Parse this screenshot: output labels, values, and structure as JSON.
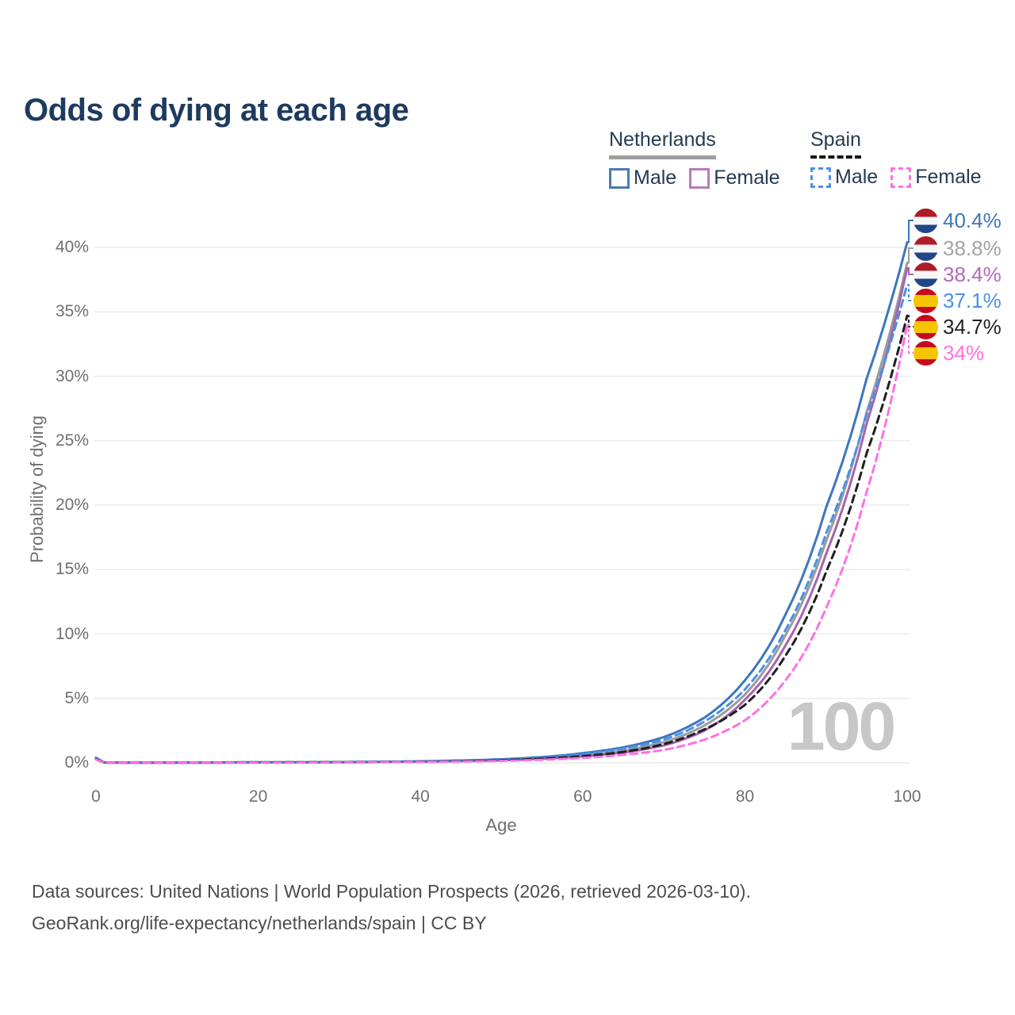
{
  "title": "Odds of dying at each age",
  "watermark": "100",
  "legend": {
    "groups": [
      {
        "country": "Netherlands",
        "line_style": "solid",
        "underline_color": "#9e9e9e",
        "items": [
          {
            "label": "Male",
            "color": "#4a7ab5",
            "dashed": false
          },
          {
            "label": "Female",
            "color": "#b87cba",
            "dashed": false
          }
        ]
      },
      {
        "country": "Spain",
        "line_style": "dashed",
        "underline_color": "#161616",
        "items": [
          {
            "label": "Male",
            "color": "#4a90e8",
            "dashed": true
          },
          {
            "label": "Female",
            "color": "#ff70e4",
            "dashed": true
          }
        ]
      }
    ]
  },
  "axes": {
    "x_title": "Age",
    "y_title": "Probability of dying"
  },
  "chart_data": {
    "type": "line",
    "title": "Odds of dying at each age",
    "xlabel": "Age",
    "ylabel": "Probability of dying",
    "xlim": [
      0,
      100
    ],
    "ylim": [
      0,
      42
    ],
    "grid": "horizontal",
    "legend_position": "top-right",
    "xtick_values": [
      0,
      20,
      40,
      60,
      80,
      100
    ],
    "xtick_labels": [
      "0",
      "20",
      "40",
      "60",
      "80",
      "100"
    ],
    "ytick_values": [
      0,
      5,
      10,
      15,
      20,
      25,
      30,
      35,
      40
    ],
    "ytick_labels": [
      "0%",
      "5%",
      "10%",
      "15%",
      "20%",
      "25%",
      "30%",
      "35%",
      "40%"
    ],
    "x": [
      0,
      1,
      5,
      10,
      15,
      20,
      25,
      30,
      35,
      40,
      45,
      50,
      55,
      60,
      65,
      70,
      75,
      80,
      85,
      90,
      95,
      100
    ],
    "series": [
      {
        "name": "Netherlands (both sexes)",
        "country": "Netherlands",
        "sex": "Both",
        "line": "solid",
        "color": "#9b9b9b",
        "label_color": "#a3a3a3",
        "flag": "nl",
        "end_label": "38.8%",
        "values": [
          0.36,
          0.03,
          0.01,
          0.01,
          0.02,
          0.04,
          0.04,
          0.05,
          0.07,
          0.1,
          0.15,
          0.23,
          0.37,
          0.6,
          0.95,
          1.6,
          2.9,
          5.3,
          9.9,
          17.2,
          27.2,
          38.8
        ]
      },
      {
        "name": "Netherlands Female",
        "country": "Netherlands",
        "sex": "Female",
        "line": "solid",
        "color": "#a763ae",
        "label_color": "#b668bd",
        "flag": "nl",
        "end_label": "38.4%",
        "values": [
          0.33,
          0.02,
          0.01,
          0.01,
          0.02,
          0.03,
          0.03,
          0.04,
          0.06,
          0.08,
          0.13,
          0.19,
          0.31,
          0.5,
          0.8,
          1.35,
          2.5,
          4.9,
          9.1,
          16.2,
          26.3,
          38.4
        ]
      },
      {
        "name": "Netherlands Male",
        "country": "Netherlands",
        "sex": "Male",
        "line": "solid",
        "color": "#3d76bd",
        "label_color": "#4076bb",
        "flag": "nl",
        "end_label": "40.4%",
        "values": [
          0.4,
          0.03,
          0.01,
          0.01,
          0.03,
          0.05,
          0.05,
          0.06,
          0.08,
          0.12,
          0.18,
          0.28,
          0.45,
          0.75,
          1.2,
          2.0,
          3.5,
          6.4,
          11.5,
          19.8,
          29.8,
          40.4
        ]
      },
      {
        "name": "Spain Male",
        "country": "Spain",
        "sex": "Male",
        "line": "dashed",
        "color": "#4a90e8",
        "label_color": "#4a90e8",
        "flag": "es",
        "end_label": "37.1%",
        "values": [
          0.31,
          0.02,
          0.01,
          0.01,
          0.03,
          0.05,
          0.05,
          0.06,
          0.08,
          0.11,
          0.17,
          0.26,
          0.42,
          0.68,
          1.1,
          1.8,
          3.2,
          5.7,
          10.3,
          17.8,
          27.0,
          37.1
        ]
      },
      {
        "name": "Spain (both sexes)",
        "country": "Spain",
        "sex": "Both",
        "line": "dashed",
        "color": "#1f1f1f",
        "label_color": "#222222",
        "flag": "es",
        "end_label": "34.7%",
        "values": [
          0.28,
          0.02,
          0.01,
          0.01,
          0.02,
          0.03,
          0.04,
          0.05,
          0.06,
          0.09,
          0.13,
          0.2,
          0.33,
          0.52,
          0.85,
          1.45,
          2.6,
          4.5,
          8.3,
          14.8,
          24.0,
          34.7
        ]
      },
      {
        "name": "Spain Female",
        "country": "Spain",
        "sex": "Female",
        "line": "dashed",
        "color": "#ff70e4",
        "label_color": "#ff70e4",
        "flag": "es",
        "end_label": "34%",
        "values": [
          0.25,
          0.02,
          0.01,
          0.01,
          0.01,
          0.02,
          0.02,
          0.03,
          0.05,
          0.07,
          0.1,
          0.15,
          0.24,
          0.38,
          0.62,
          1.0,
          1.8,
          3.3,
          6.4,
          12.0,
          21.0,
          34.0
        ]
      }
    ],
    "flag_colors": {
      "nl": [
        "#AE1C28",
        "#f6f6f6",
        "#21468B"
      ],
      "es": [
        "#C60B1E",
        "#F6C500",
        "#C60B1E"
      ]
    }
  },
  "footer": {
    "line1": "Data sources: United Nations | World Population Prospects (2026, retrieved 2026-03-10).",
    "line2": "GeoRank.org/life-expectancy/netherlands/spain | CC BY"
  }
}
